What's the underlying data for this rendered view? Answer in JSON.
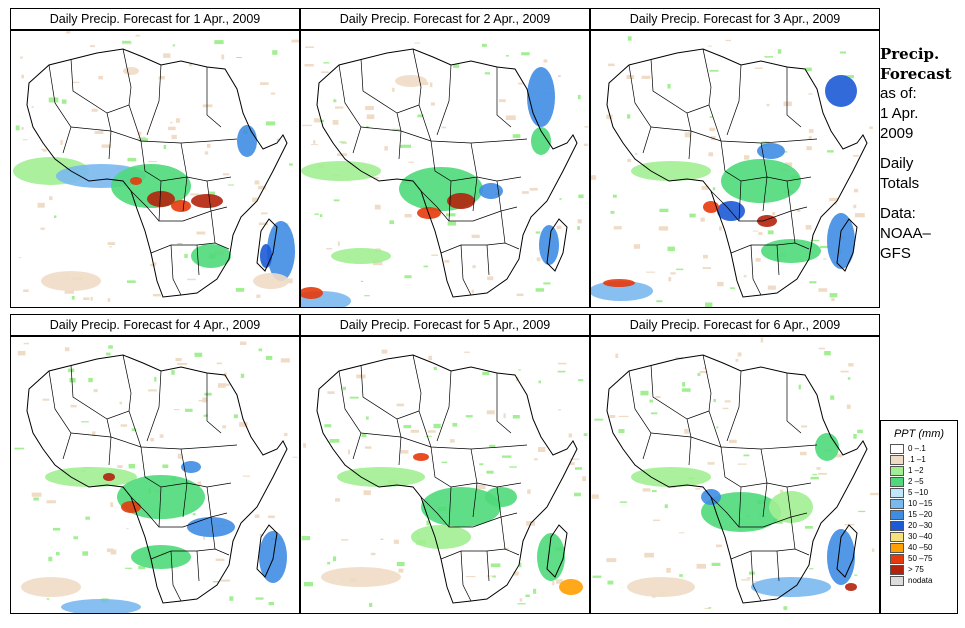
{
  "colors": {
    "c0": "#ffffff",
    "c1": "#f0dcc6",
    "c2": "#a2ee92",
    "c3": "#4fd97a",
    "c4": "#bfe6fa",
    "c5": "#7ab8f0",
    "c6": "#3f8de3",
    "c7": "#1c5ad6",
    "c8": "#f7e17a",
    "c9": "#ff9f00",
    "c10": "#e53a0c",
    "c11": "#b3220c",
    "c12": "#7a1414",
    "nodata": "#dcdcdc"
  },
  "panels": [
    {
      "title": "Daily Precip. Forecast for  1 Apr., 2009"
    },
    {
      "title": "Daily Precip. Forecast for  2 Apr., 2009"
    },
    {
      "title": "Daily Precip. Forecast for  3 Apr., 2009"
    },
    {
      "title": "Daily Precip. Forecast for  4 Apr., 2009"
    },
    {
      "title": "Daily Precip. Forecast for  5 Apr., 2009"
    },
    {
      "title": "Daily Precip. Forecast for  6 Apr., 2009"
    }
  ],
  "side": {
    "heading1": "Precip.",
    "heading2": "Forecast",
    "as_of": "as of:",
    "date1": "1 Apr.",
    "date2": "2009",
    "daily": "Daily",
    "totals": "Totals",
    "data_label": "Data:",
    "source1": "NOAA–",
    "source2": "GFS"
  },
  "legend": {
    "title": "PPT (mm)",
    "items": [
      {
        "label": "0 –.1",
        "color": "#ffffff"
      },
      {
        "label": ".1 –1",
        "color": "#f0dcc6"
      },
      {
        "label": "1 –2",
        "color": "#a2ee92"
      },
      {
        "label": "2 –5",
        "color": "#4fd97a"
      },
      {
        "label": "5 –10",
        "color": "#bfe6fa"
      },
      {
        "label": "10 –15",
        "color": "#7ab8f0"
      },
      {
        "label": "15 –20",
        "color": "#3f8de3"
      },
      {
        "label": "20 –30",
        "color": "#1c5ad6"
      },
      {
        "label": "30 –40",
        "color": "#f7e17a"
      },
      {
        "label": "40 –50",
        "color": "#ff9f00"
      },
      {
        "label": "50 –75",
        "color": "#e53a0c"
      },
      {
        "label": "> 75",
        "color": "#b3220c"
      },
      {
        "label": "nodata",
        "color": "#dcdcdc"
      }
    ]
  }
}
